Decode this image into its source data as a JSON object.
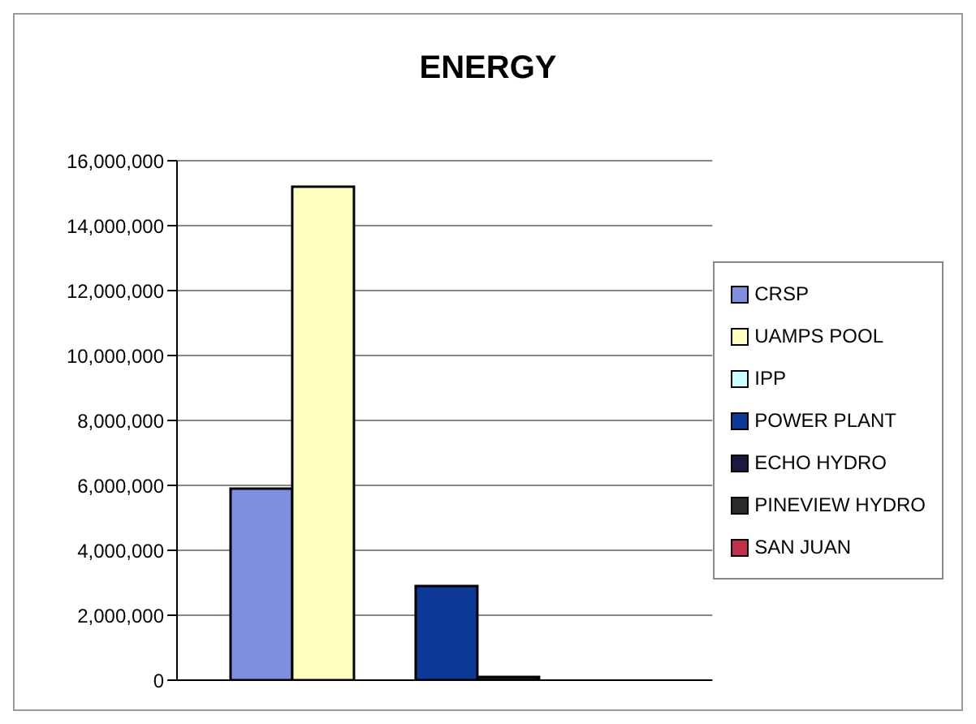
{
  "chart_data": {
    "type": "bar",
    "title": "ENERGY",
    "categories": [
      null
    ],
    "series": [
      {
        "name": "CRSP",
        "color": "#7f8fe0",
        "values": [
          5900000
        ]
      },
      {
        "name": "UAMPS POOL",
        "color": "#ffffc0",
        "values": [
          15200000
        ]
      },
      {
        "name": "IPP",
        "color": "#ccffff",
        "values": [
          0
        ]
      },
      {
        "name": "POWER PLANT",
        "color": "#0d3a99",
        "values": [
          2900000
        ]
      },
      {
        "name": "ECHO HYDRO",
        "color": "#1a1a40",
        "values": [
          100000
        ]
      },
      {
        "name": "PINEVIEW HYDRO",
        "color": "#2b2b2b",
        "values": [
          0
        ]
      },
      {
        "name": "SAN JUAN",
        "color": "#c0304a",
        "values": [
          0
        ]
      }
    ],
    "ylim": [
      0,
      16000000
    ],
    "yticks": [
      0,
      {
        "value": 2000000,
        "label": "2,000,000"
      },
      {
        "value": 4000000,
        "label": "4,000,000"
      },
      {
        "value": 6000000,
        "label": "6,000,000"
      },
      {
        "value": 8000000,
        "label": "8,000,000"
      },
      {
        "value": 10000000,
        "label": "10,000,000"
      },
      {
        "value": 12000000,
        "label": "12,000,000"
      },
      {
        "value": 14000000,
        "label": "14,000,000"
      },
      {
        "value": 16000000,
        "label": "16,000,000"
      }
    ],
    "grid": "y",
    "legend": "right"
  }
}
